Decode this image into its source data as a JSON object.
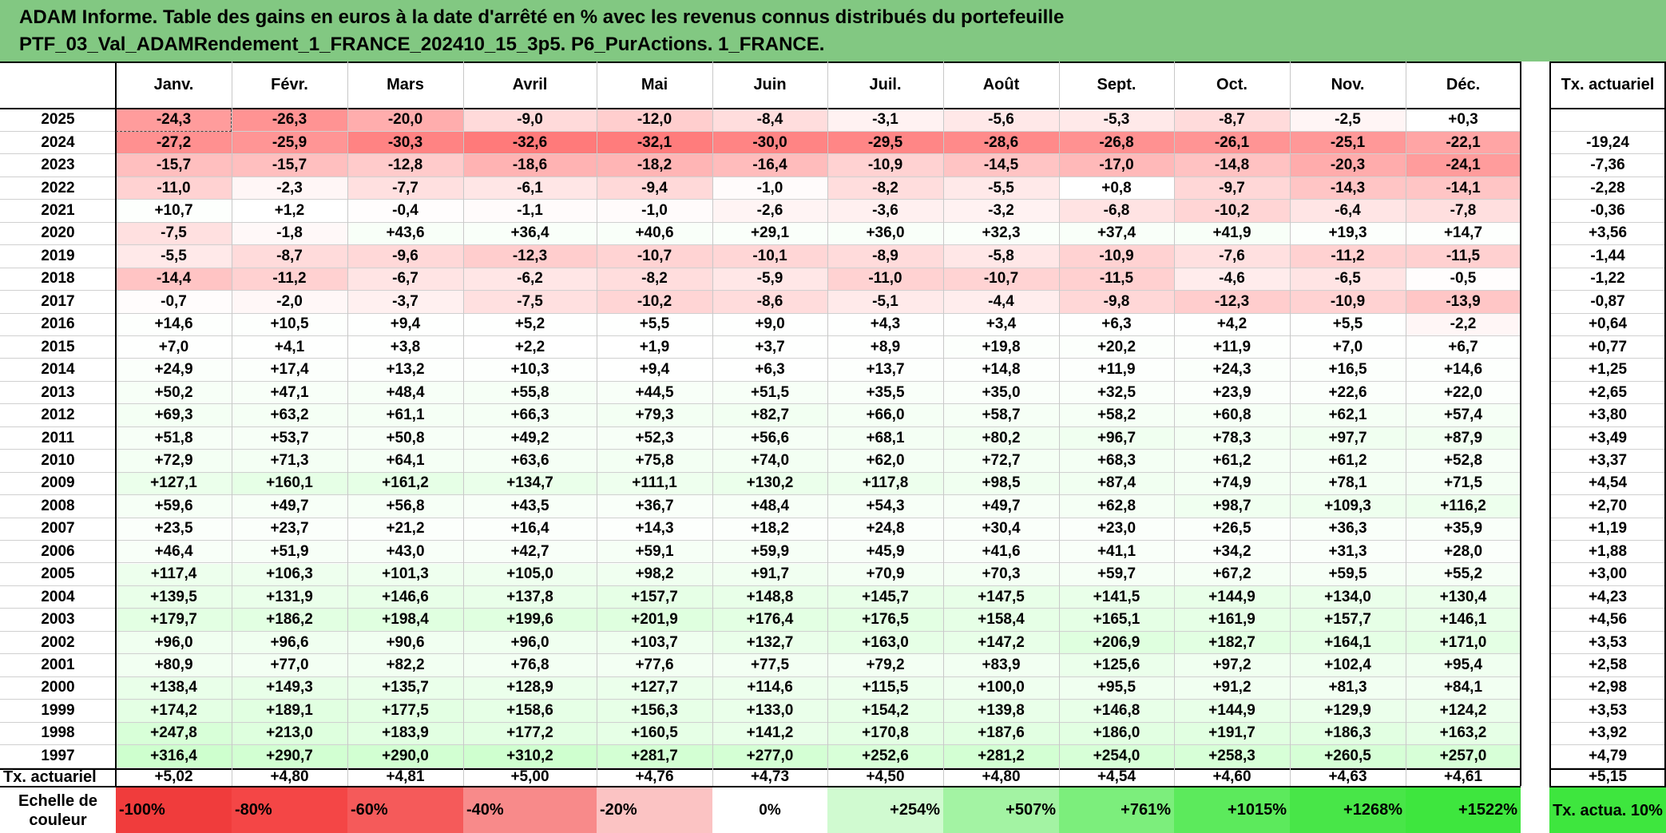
{
  "title": {
    "line1": "ADAM Informe. Table des gains en euros à la date d'arrêté en % avec les revenus connus distribués du portefeuille",
    "line2": "PTF_03_Val_ADAMRendement_1_FRANCE_202410_15_3p5. P6_PurActions. 1_FRANCE."
  },
  "months": [
    "Janv.",
    "Févr.",
    "Mars",
    "Avril",
    "Mai",
    "Juin",
    "Juil.",
    "Août",
    "Sept.",
    "Oct.",
    "Nov.",
    "Déc."
  ],
  "tx_header": "Tx. actuariel",
  "rows": [
    {
      "year": "2025",
      "values": [
        "-24,3",
        "-26,3",
        "-20,0",
        "-9,0",
        "-12,0",
        "-8,4",
        "-3,1",
        "-5,6",
        "-5,3",
        "-8,7",
        "-2,5",
        "+0,3"
      ],
      "tx": ""
    },
    {
      "year": "2024",
      "values": [
        "-27,2",
        "-25,9",
        "-30,3",
        "-32,6",
        "-32,1",
        "-30,0",
        "-29,5",
        "-28,6",
        "-26,8",
        "-26,1",
        "-25,1",
        "-22,1"
      ],
      "tx": "-19,24"
    },
    {
      "year": "2023",
      "values": [
        "-15,7",
        "-15,7",
        "-12,8",
        "-18,6",
        "-18,2",
        "-16,4",
        "-10,9",
        "-14,5",
        "-17,0",
        "-14,8",
        "-20,3",
        "-24,1"
      ],
      "tx": "-7,36"
    },
    {
      "year": "2022",
      "values": [
        "-11,0",
        "-2,3",
        "-7,7",
        "-6,1",
        "-9,4",
        "-1,0",
        "-8,2",
        "-5,5",
        "+0,8",
        "-9,7",
        "-14,3",
        "-14,1"
      ],
      "tx": "-2,28"
    },
    {
      "year": "2021",
      "values": [
        "+10,7",
        "+1,2",
        "-0,4",
        "-1,1",
        "-1,0",
        "-2,6",
        "-3,6",
        "-3,2",
        "-6,8",
        "-10,2",
        "-6,4",
        "-7,8"
      ],
      "tx": "-0,36"
    },
    {
      "year": "2020",
      "values": [
        "-7,5",
        "-1,8",
        "+43,6",
        "+36,4",
        "+40,6",
        "+29,1",
        "+36,0",
        "+32,3",
        "+37,4",
        "+41,9",
        "+19,3",
        "+14,7"
      ],
      "tx": "+3,56"
    },
    {
      "year": "2019",
      "values": [
        "-5,5",
        "-8,7",
        "-9,6",
        "-12,3",
        "-10,7",
        "-10,1",
        "-8,9",
        "-5,8",
        "-10,9",
        "-7,6",
        "-11,2",
        "-11,5"
      ],
      "tx": "-1,44"
    },
    {
      "year": "2018",
      "values": [
        "-14,4",
        "-11,2",
        "-6,7",
        "-6,2",
        "-8,2",
        "-5,9",
        "-11,0",
        "-10,7",
        "-11,5",
        "-4,6",
        "-6,5",
        "-0,5"
      ],
      "tx": "-1,22"
    },
    {
      "year": "2017",
      "values": [
        "-0,7",
        "-2,0",
        "-3,7",
        "-7,5",
        "-10,2",
        "-8,6",
        "-5,1",
        "-4,4",
        "-9,8",
        "-12,3",
        "-10,9",
        "-13,9"
      ],
      "tx": "-0,87"
    },
    {
      "year": "2016",
      "values": [
        "+14,6",
        "+10,5",
        "+9,4",
        "+5,2",
        "+5,5",
        "+9,0",
        "+4,3",
        "+3,4",
        "+6,3",
        "+4,2",
        "+5,5",
        "-2,2"
      ],
      "tx": "+0,64"
    },
    {
      "year": "2015",
      "values": [
        "+7,0",
        "+4,1",
        "+3,8",
        "+2,2",
        "+1,9",
        "+3,7",
        "+8,9",
        "+19,8",
        "+20,2",
        "+11,9",
        "+7,0",
        "+6,7"
      ],
      "tx": "+0,77"
    },
    {
      "year": "2014",
      "values": [
        "+24,9",
        "+17,4",
        "+13,2",
        "+10,3",
        "+9,4",
        "+6,3",
        "+13,7",
        "+14,8",
        "+11,9",
        "+24,3",
        "+16,5",
        "+14,6"
      ],
      "tx": "+1,25"
    },
    {
      "year": "2013",
      "values": [
        "+50,2",
        "+47,1",
        "+48,4",
        "+55,8",
        "+44,5",
        "+51,5",
        "+35,5",
        "+35,0",
        "+32,5",
        "+23,9",
        "+22,6",
        "+22,0"
      ],
      "tx": "+2,65"
    },
    {
      "year": "2012",
      "values": [
        "+69,3",
        "+63,2",
        "+61,1",
        "+66,3",
        "+79,3",
        "+82,7",
        "+66,0",
        "+58,7",
        "+58,2",
        "+60,8",
        "+62,1",
        "+57,4"
      ],
      "tx": "+3,80"
    },
    {
      "year": "2011",
      "values": [
        "+51,8",
        "+53,7",
        "+50,8",
        "+49,2",
        "+52,3",
        "+56,6",
        "+68,1",
        "+80,2",
        "+96,7",
        "+78,3",
        "+97,7",
        "+87,9"
      ],
      "tx": "+3,49"
    },
    {
      "year": "2010",
      "values": [
        "+72,9",
        "+71,3",
        "+64,1",
        "+63,6",
        "+75,8",
        "+74,0",
        "+62,0",
        "+72,7",
        "+68,3",
        "+61,2",
        "+61,2",
        "+52,8"
      ],
      "tx": "+3,37"
    },
    {
      "year": "2009",
      "values": [
        "+127,1",
        "+160,1",
        "+161,2",
        "+134,7",
        "+111,1",
        "+130,2",
        "+117,8",
        "+98,5",
        "+87,4",
        "+74,9",
        "+78,1",
        "+71,5"
      ],
      "tx": "+4,54"
    },
    {
      "year": "2008",
      "values": [
        "+59,6",
        "+49,7",
        "+56,8",
        "+43,5",
        "+36,7",
        "+48,4",
        "+54,3",
        "+49,7",
        "+62,8",
        "+98,7",
        "+109,3",
        "+116,2"
      ],
      "tx": "+2,70"
    },
    {
      "year": "2007",
      "values": [
        "+23,5",
        "+23,7",
        "+21,2",
        "+16,4",
        "+14,3",
        "+18,2",
        "+24,8",
        "+30,4",
        "+23,0",
        "+26,5",
        "+36,3",
        "+35,9"
      ],
      "tx": "+1,19"
    },
    {
      "year": "2006",
      "values": [
        "+46,4",
        "+51,9",
        "+43,0",
        "+42,7",
        "+59,1",
        "+59,9",
        "+45,9",
        "+41,6",
        "+41,1",
        "+34,2",
        "+31,3",
        "+28,0"
      ],
      "tx": "+1,88"
    },
    {
      "year": "2005",
      "values": [
        "+117,4",
        "+106,3",
        "+101,3",
        "+105,0",
        "+98,2",
        "+91,7",
        "+70,9",
        "+70,3",
        "+59,7",
        "+67,2",
        "+59,5",
        "+55,2"
      ],
      "tx": "+3,00"
    },
    {
      "year": "2004",
      "values": [
        "+139,5",
        "+131,9",
        "+146,6",
        "+137,8",
        "+157,7",
        "+148,8",
        "+145,7",
        "+147,5",
        "+141,5",
        "+144,9",
        "+134,0",
        "+130,4"
      ],
      "tx": "+4,23"
    },
    {
      "year": "2003",
      "values": [
        "+179,7",
        "+186,2",
        "+198,4",
        "+199,6",
        "+201,9",
        "+176,4",
        "+176,5",
        "+158,4",
        "+165,1",
        "+161,9",
        "+157,7",
        "+146,1"
      ],
      "tx": "+4,56"
    },
    {
      "year": "2002",
      "values": [
        "+96,0",
        "+96,6",
        "+90,6",
        "+96,0",
        "+103,7",
        "+132,7",
        "+163,0",
        "+147,2",
        "+206,9",
        "+182,7",
        "+164,1",
        "+171,0"
      ],
      "tx": "+3,53"
    },
    {
      "year": "2001",
      "values": [
        "+80,9",
        "+77,0",
        "+82,2",
        "+76,8",
        "+77,6",
        "+77,5",
        "+79,2",
        "+83,9",
        "+125,6",
        "+97,2",
        "+102,4",
        "+95,4"
      ],
      "tx": "+2,58"
    },
    {
      "year": "2000",
      "values": [
        "+138,4",
        "+149,3",
        "+135,7",
        "+128,9",
        "+127,7",
        "+114,6",
        "+115,5",
        "+100,0",
        "+95,5",
        "+91,2",
        "+81,3",
        "+84,1"
      ],
      "tx": "+2,98"
    },
    {
      "year": "1999",
      "values": [
        "+174,2",
        "+189,1",
        "+177,5",
        "+158,6",
        "+156,3",
        "+133,0",
        "+154,2",
        "+139,8",
        "+146,8",
        "+144,9",
        "+129,9",
        "+124,2"
      ],
      "tx": "+3,53"
    },
    {
      "year": "1998",
      "values": [
        "+247,8",
        "+213,0",
        "+183,9",
        "+177,2",
        "+160,5",
        "+141,2",
        "+170,8",
        "+187,6",
        "+186,0",
        "+191,7",
        "+186,3",
        "+163,2"
      ],
      "tx": "+3,92"
    },
    {
      "year": "1997",
      "values": [
        "+316,4",
        "+290,7",
        "+290,0",
        "+310,2",
        "+281,7",
        "+277,0",
        "+252,6",
        "+281,2",
        "+254,0",
        "+258,3",
        "+260,5",
        "+257,0"
      ],
      "tx": "+4,79"
    }
  ],
  "footer": {
    "label": "Tx. actuariel",
    "values": [
      "+5,02",
      "+4,80",
      "+4,81",
      "+5,00",
      "+4,76",
      "+4,73",
      "+4,50",
      "+4,80",
      "+4,54",
      "+4,60",
      "+4,63",
      "+4,61"
    ],
    "tx": "+5,15"
  },
  "scale": {
    "label": "Echelle de couleur",
    "items": [
      {
        "text": "-100%",
        "color": "#f03c3c",
        "align": "left"
      },
      {
        "text": "-80%",
        "color": "#f44646",
        "align": "left"
      },
      {
        "text": "-60%",
        "color": "#f55a5a",
        "align": "left"
      },
      {
        "text": "-40%",
        "color": "#f88a8a",
        "align": "left"
      },
      {
        "text": "-20%",
        "color": "#fbc3c3",
        "align": "left"
      },
      {
        "text": "0%",
        "color": "#ffffff",
        "align": "center"
      },
      {
        "text": "+254%",
        "color": "#d0fad0",
        "align": "right"
      },
      {
        "text": "+507%",
        "color": "#a3f3a3",
        "align": "right"
      },
      {
        "text": "+761%",
        "color": "#7cee7c",
        "align": "right"
      },
      {
        "text": "+1015%",
        "color": "#5cea5c",
        "align": "right"
      },
      {
        "text": "+1268%",
        "color": "#48e648",
        "align": "right"
      },
      {
        "text": "+1522%",
        "color": "#3ee63e",
        "align": "right"
      }
    ],
    "tx_label": "Tx. actua. 10%",
    "tx_color": "#3ee63e"
  },
  "colors": {
    "header_bg": "#82c882",
    "negative": "#f03c3c",
    "positive": "#3ee63e"
  }
}
